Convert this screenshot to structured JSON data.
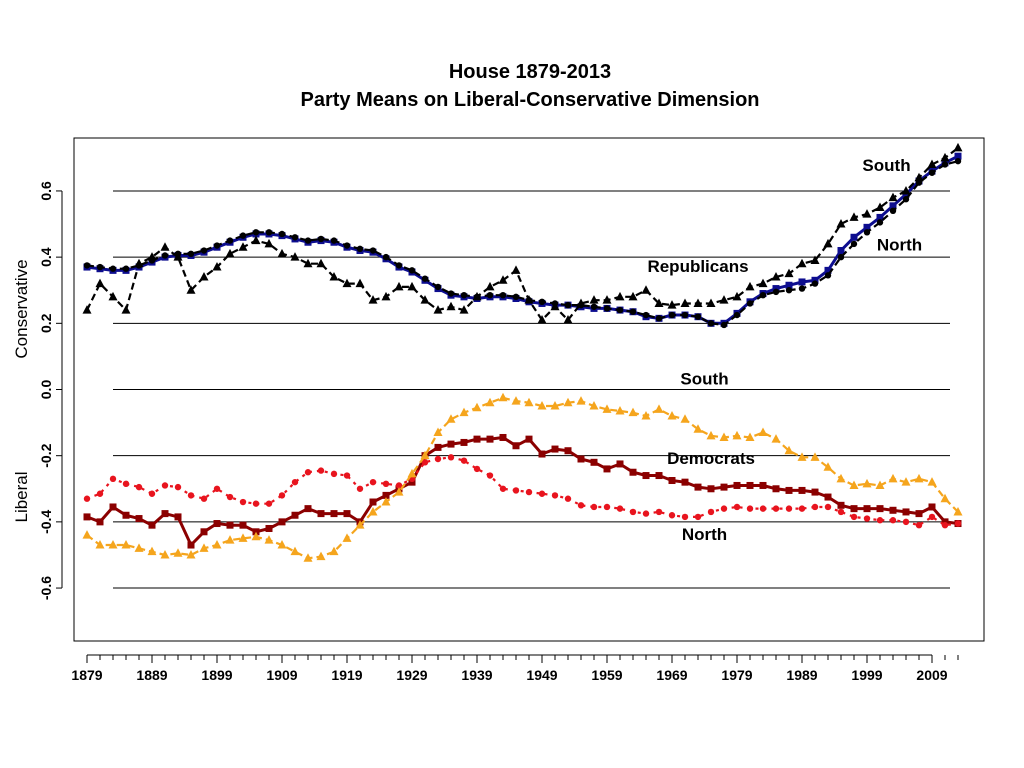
{
  "chart_data": {
    "type": "line",
    "title": "House 1879-2013",
    "subtitle": "Party Means on Liberal-Conservative Dimension",
    "xlabel": "",
    "ylabel_top": "Conservative",
    "ylabel_bottom": "Liberal",
    "xlim": [
      1877,
      2017
    ],
    "ylim": [
      -0.76,
      0.76
    ],
    "x_ticks": [
      1879,
      1889,
      1899,
      1909,
      1919,
      1929,
      1939,
      1949,
      1959,
      1969,
      1979,
      1989,
      1999,
      2009
    ],
    "y_ticks": [
      0.6,
      0.4,
      0.2,
      0.0,
      -0.2,
      -0.4,
      -0.6
    ],
    "y_tick_labels": [
      "0.6",
      "0.4",
      "0.2",
      "0.0",
      "-0.2",
      "-0.4",
      "-0.6"
    ],
    "gridlines_y": [
      0.6,
      0.4,
      0.2,
      0.0,
      -0.2,
      -0.4,
      -0.6
    ],
    "annotations": [
      {
        "text": "South",
        "x": 2002,
        "y": 0.66
      },
      {
        "text": "North",
        "x": 2004,
        "y": 0.42
      },
      {
        "text": "Republicans",
        "x": 1973,
        "y": 0.355
      },
      {
        "text": "South",
        "x": 1974,
        "y": 0.015
      },
      {
        "text": "Democrats",
        "x": 1975,
        "y": -0.225
      },
      {
        "text": "North",
        "x": 1974,
        "y": -0.455
      }
    ],
    "series": [
      {
        "name": "Republicans",
        "color": "#0d0d8f",
        "dash": "",
        "marker": "square",
        "x": [
          1879,
          1881,
          1883,
          1885,
          1887,
          1889,
          1891,
          1893,
          1895,
          1897,
          1899,
          1901,
          1903,
          1905,
          1907,
          1909,
          1911,
          1913,
          1915,
          1917,
          1919,
          1921,
          1923,
          1925,
          1927,
          1929,
          1931,
          1933,
          1935,
          1937,
          1939,
          1941,
          1943,
          1945,
          1947,
          1949,
          1951,
          1953,
          1955,
          1957,
          1959,
          1961,
          1963,
          1965,
          1967,
          1969,
          1971,
          1973,
          1975,
          1977,
          1979,
          1981,
          1983,
          1985,
          1987,
          1989,
          1991,
          1993,
          1995,
          1997,
          1999,
          2001,
          2003,
          2005,
          2007,
          2009,
          2011,
          2013
        ],
        "values": [
          0.37,
          0.365,
          0.36,
          0.36,
          0.37,
          0.385,
          0.4,
          0.405,
          0.405,
          0.415,
          0.43,
          0.445,
          0.46,
          0.47,
          0.47,
          0.465,
          0.455,
          0.445,
          0.45,
          0.445,
          0.43,
          0.42,
          0.415,
          0.395,
          0.37,
          0.355,
          0.33,
          0.305,
          0.285,
          0.28,
          0.275,
          0.28,
          0.28,
          0.275,
          0.265,
          0.26,
          0.255,
          0.255,
          0.25,
          0.245,
          0.245,
          0.24,
          0.235,
          0.22,
          0.215,
          0.225,
          0.225,
          0.22,
          0.2,
          0.2,
          0.23,
          0.265,
          0.29,
          0.305,
          0.315,
          0.325,
          0.33,
          0.36,
          0.42,
          0.46,
          0.49,
          0.52,
          0.555,
          0.59,
          0.63,
          0.66,
          0.685,
          0.705
        ]
      },
      {
        "name": "Republicans North",
        "color": "#000000",
        "dash": "7,4",
        "marker": "circle",
        "x": [
          1879,
          1881,
          1883,
          1885,
          1887,
          1889,
          1891,
          1893,
          1895,
          1897,
          1899,
          1901,
          1903,
          1905,
          1907,
          1909,
          1911,
          1913,
          1915,
          1917,
          1919,
          1921,
          1923,
          1925,
          1927,
          1929,
          1931,
          1933,
          1935,
          1937,
          1939,
          1941,
          1943,
          1945,
          1947,
          1949,
          1951,
          1953,
          1955,
          1957,
          1959,
          1961,
          1963,
          1965,
          1967,
          1969,
          1971,
          1973,
          1975,
          1977,
          1979,
          1981,
          1983,
          1985,
          1987,
          1989,
          1991,
          1993,
          1995,
          1997,
          1999,
          2001,
          2003,
          2005,
          2007,
          2009,
          2011,
          2013
        ],
        "values": [
          0.375,
          0.37,
          0.365,
          0.365,
          0.375,
          0.39,
          0.405,
          0.41,
          0.41,
          0.42,
          0.435,
          0.45,
          0.465,
          0.475,
          0.475,
          0.47,
          0.46,
          0.45,
          0.455,
          0.45,
          0.435,
          0.425,
          0.42,
          0.4,
          0.375,
          0.36,
          0.335,
          0.31,
          0.29,
          0.285,
          0.28,
          0.285,
          0.285,
          0.28,
          0.27,
          0.265,
          0.26,
          0.255,
          0.255,
          0.25,
          0.245,
          0.24,
          0.235,
          0.225,
          0.215,
          0.225,
          0.225,
          0.22,
          0.2,
          0.195,
          0.225,
          0.26,
          0.285,
          0.295,
          0.3,
          0.305,
          0.32,
          0.345,
          0.4,
          0.44,
          0.475,
          0.505,
          0.54,
          0.575,
          0.625,
          0.655,
          0.68,
          0.69
        ]
      },
      {
        "name": "Republicans South",
        "color": "#000000",
        "dash": "7,4",
        "marker": "triangle",
        "x": [
          1879,
          1881,
          1883,
          1885,
          1887,
          1889,
          1891,
          1893,
          1895,
          1897,
          1899,
          1901,
          1903,
          1905,
          1907,
          1909,
          1911,
          1913,
          1915,
          1917,
          1919,
          1921,
          1923,
          1925,
          1927,
          1929,
          1931,
          1933,
          1935,
          1937,
          1939,
          1941,
          1943,
          1945,
          1947,
          1949,
          1951,
          1953,
          1955,
          1957,
          1959,
          1961,
          1963,
          1965,
          1967,
          1969,
          1971,
          1973,
          1975,
          1977,
          1979,
          1981,
          1983,
          1985,
          1987,
          1989,
          1991,
          1993,
          1995,
          1997,
          1999,
          2001,
          2003,
          2005,
          2007,
          2009,
          2011,
          2013
        ],
        "values": [
          0.24,
          0.32,
          0.28,
          0.24,
          0.38,
          0.4,
          0.43,
          0.4,
          0.3,
          0.34,
          0.37,
          0.41,
          0.43,
          0.45,
          0.44,
          0.41,
          0.4,
          0.38,
          0.38,
          0.34,
          0.32,
          0.32,
          0.27,
          0.28,
          0.31,
          0.31,
          0.27,
          0.24,
          0.25,
          0.24,
          0.28,
          0.31,
          0.33,
          0.36,
          0.27,
          0.21,
          0.25,
          0.21,
          0.26,
          0.27,
          0.27,
          0.28,
          0.28,
          0.3,
          0.26,
          0.255,
          0.26,
          0.26,
          0.26,
          0.27,
          0.28,
          0.31,
          0.32,
          0.34,
          0.35,
          0.38,
          0.39,
          0.44,
          0.5,
          0.52,
          0.53,
          0.55,
          0.58,
          0.6,
          0.64,
          0.68,
          0.7,
          0.73
        ]
      },
      {
        "name": "Democrats",
        "color": "#8b0000",
        "dash": "",
        "marker": "square",
        "x": [
          1879,
          1881,
          1883,
          1885,
          1887,
          1889,
          1891,
          1893,
          1895,
          1897,
          1899,
          1901,
          1903,
          1905,
          1907,
          1909,
          1911,
          1913,
          1915,
          1917,
          1919,
          1921,
          1923,
          1925,
          1927,
          1929,
          1931,
          1933,
          1935,
          1937,
          1939,
          1941,
          1943,
          1945,
          1947,
          1949,
          1951,
          1953,
          1955,
          1957,
          1959,
          1961,
          1963,
          1965,
          1967,
          1969,
          1971,
          1973,
          1975,
          1977,
          1979,
          1981,
          1983,
          1985,
          1987,
          1989,
          1991,
          1993,
          1995,
          1997,
          1999,
          2001,
          2003,
          2005,
          2007,
          2009,
          2011,
          2013
        ],
        "values": [
          -0.385,
          -0.4,
          -0.355,
          -0.38,
          -0.39,
          -0.41,
          -0.375,
          -0.385,
          -0.47,
          -0.43,
          -0.405,
          -0.41,
          -0.41,
          -0.43,
          -0.42,
          -0.4,
          -0.38,
          -0.36,
          -0.375,
          -0.375,
          -0.375,
          -0.4,
          -0.34,
          -0.32,
          -0.3,
          -0.28,
          -0.2,
          -0.175,
          -0.165,
          -0.16,
          -0.15,
          -0.15,
          -0.145,
          -0.17,
          -0.15,
          -0.195,
          -0.18,
          -0.185,
          -0.21,
          -0.22,
          -0.24,
          -0.225,
          -0.25,
          -0.26,
          -0.26,
          -0.275,
          -0.28,
          -0.295,
          -0.3,
          -0.295,
          -0.29,
          -0.29,
          -0.29,
          -0.3,
          -0.305,
          -0.305,
          -0.31,
          -0.325,
          -0.35,
          -0.36,
          -0.36,
          -0.36,
          -0.365,
          -0.37,
          -0.375,
          -0.355,
          -0.4,
          -0.405
        ]
      },
      {
        "name": "Democrats North",
        "color": "#e8141e",
        "dash": "3,5",
        "marker": "circle",
        "x": [
          1879,
          1881,
          1883,
          1885,
          1887,
          1889,
          1891,
          1893,
          1895,
          1897,
          1899,
          1901,
          1903,
          1905,
          1907,
          1909,
          1911,
          1913,
          1915,
          1917,
          1919,
          1921,
          1923,
          1925,
          1927,
          1929,
          1931,
          1933,
          1935,
          1937,
          1939,
          1941,
          1943,
          1945,
          1947,
          1949,
          1951,
          1953,
          1955,
          1957,
          1959,
          1961,
          1963,
          1965,
          1967,
          1969,
          1971,
          1973,
          1975,
          1977,
          1979,
          1981,
          1983,
          1985,
          1987,
          1989,
          1991,
          1993,
          1995,
          1997,
          1999,
          2001,
          2003,
          2005,
          2007,
          2009,
          2011,
          2013
        ],
        "values": [
          -0.33,
          -0.315,
          -0.27,
          -0.285,
          -0.295,
          -0.315,
          -0.29,
          -0.295,
          -0.32,
          -0.33,
          -0.3,
          -0.325,
          -0.34,
          -0.345,
          -0.345,
          -0.32,
          -0.28,
          -0.25,
          -0.245,
          -0.255,
          -0.26,
          -0.3,
          -0.28,
          -0.285,
          -0.29,
          -0.27,
          -0.22,
          -0.21,
          -0.205,
          -0.215,
          -0.24,
          -0.26,
          -0.3,
          -0.305,
          -0.31,
          -0.315,
          -0.32,
          -0.33,
          -0.35,
          -0.355,
          -0.355,
          -0.36,
          -0.37,
          -0.375,
          -0.37,
          -0.38,
          -0.385,
          -0.385,
          -0.37,
          -0.36,
          -0.355,
          -0.36,
          -0.36,
          -0.36,
          -0.36,
          -0.36,
          -0.355,
          -0.355,
          -0.37,
          -0.385,
          -0.39,
          -0.395,
          -0.395,
          -0.4,
          -0.41,
          -0.385,
          -0.41,
          -0.405
        ]
      },
      {
        "name": "Democrats South",
        "color": "#f5a51d",
        "dash": "7,4",
        "marker": "triangle",
        "x": [
          1879,
          1881,
          1883,
          1885,
          1887,
          1889,
          1891,
          1893,
          1895,
          1897,
          1899,
          1901,
          1903,
          1905,
          1907,
          1909,
          1911,
          1913,
          1915,
          1917,
          1919,
          1921,
          1923,
          1925,
          1927,
          1929,
          1931,
          1933,
          1935,
          1937,
          1939,
          1941,
          1943,
          1945,
          1947,
          1949,
          1951,
          1953,
          1955,
          1957,
          1959,
          1961,
          1963,
          1965,
          1967,
          1969,
          1971,
          1973,
          1975,
          1977,
          1979,
          1981,
          1983,
          1985,
          1987,
          1989,
          1991,
          1993,
          1995,
          1997,
          1999,
          2001,
          2003,
          2005,
          2007,
          2009,
          2011,
          2013
        ],
        "values": [
          -0.44,
          -0.47,
          -0.47,
          -0.47,
          -0.48,
          -0.49,
          -0.5,
          -0.495,
          -0.5,
          -0.48,
          -0.47,
          -0.455,
          -0.45,
          -0.445,
          -0.455,
          -0.47,
          -0.49,
          -0.51,
          -0.505,
          -0.49,
          -0.45,
          -0.41,
          -0.37,
          -0.34,
          -0.31,
          -0.255,
          -0.2,
          -0.13,
          -0.09,
          -0.07,
          -0.055,
          -0.04,
          -0.025,
          -0.035,
          -0.04,
          -0.05,
          -0.05,
          -0.04,
          -0.035,
          -0.05,
          -0.06,
          -0.065,
          -0.07,
          -0.08,
          -0.06,
          -0.08,
          -0.09,
          -0.12,
          -0.14,
          -0.145,
          -0.14,
          -0.145,
          -0.13,
          -0.15,
          -0.185,
          -0.205,
          -0.205,
          -0.235,
          -0.27,
          -0.29,
          -0.285,
          -0.29,
          -0.27,
          -0.28,
          -0.27,
          -0.28,
          -0.33,
          -0.37
        ]
      }
    ]
  }
}
